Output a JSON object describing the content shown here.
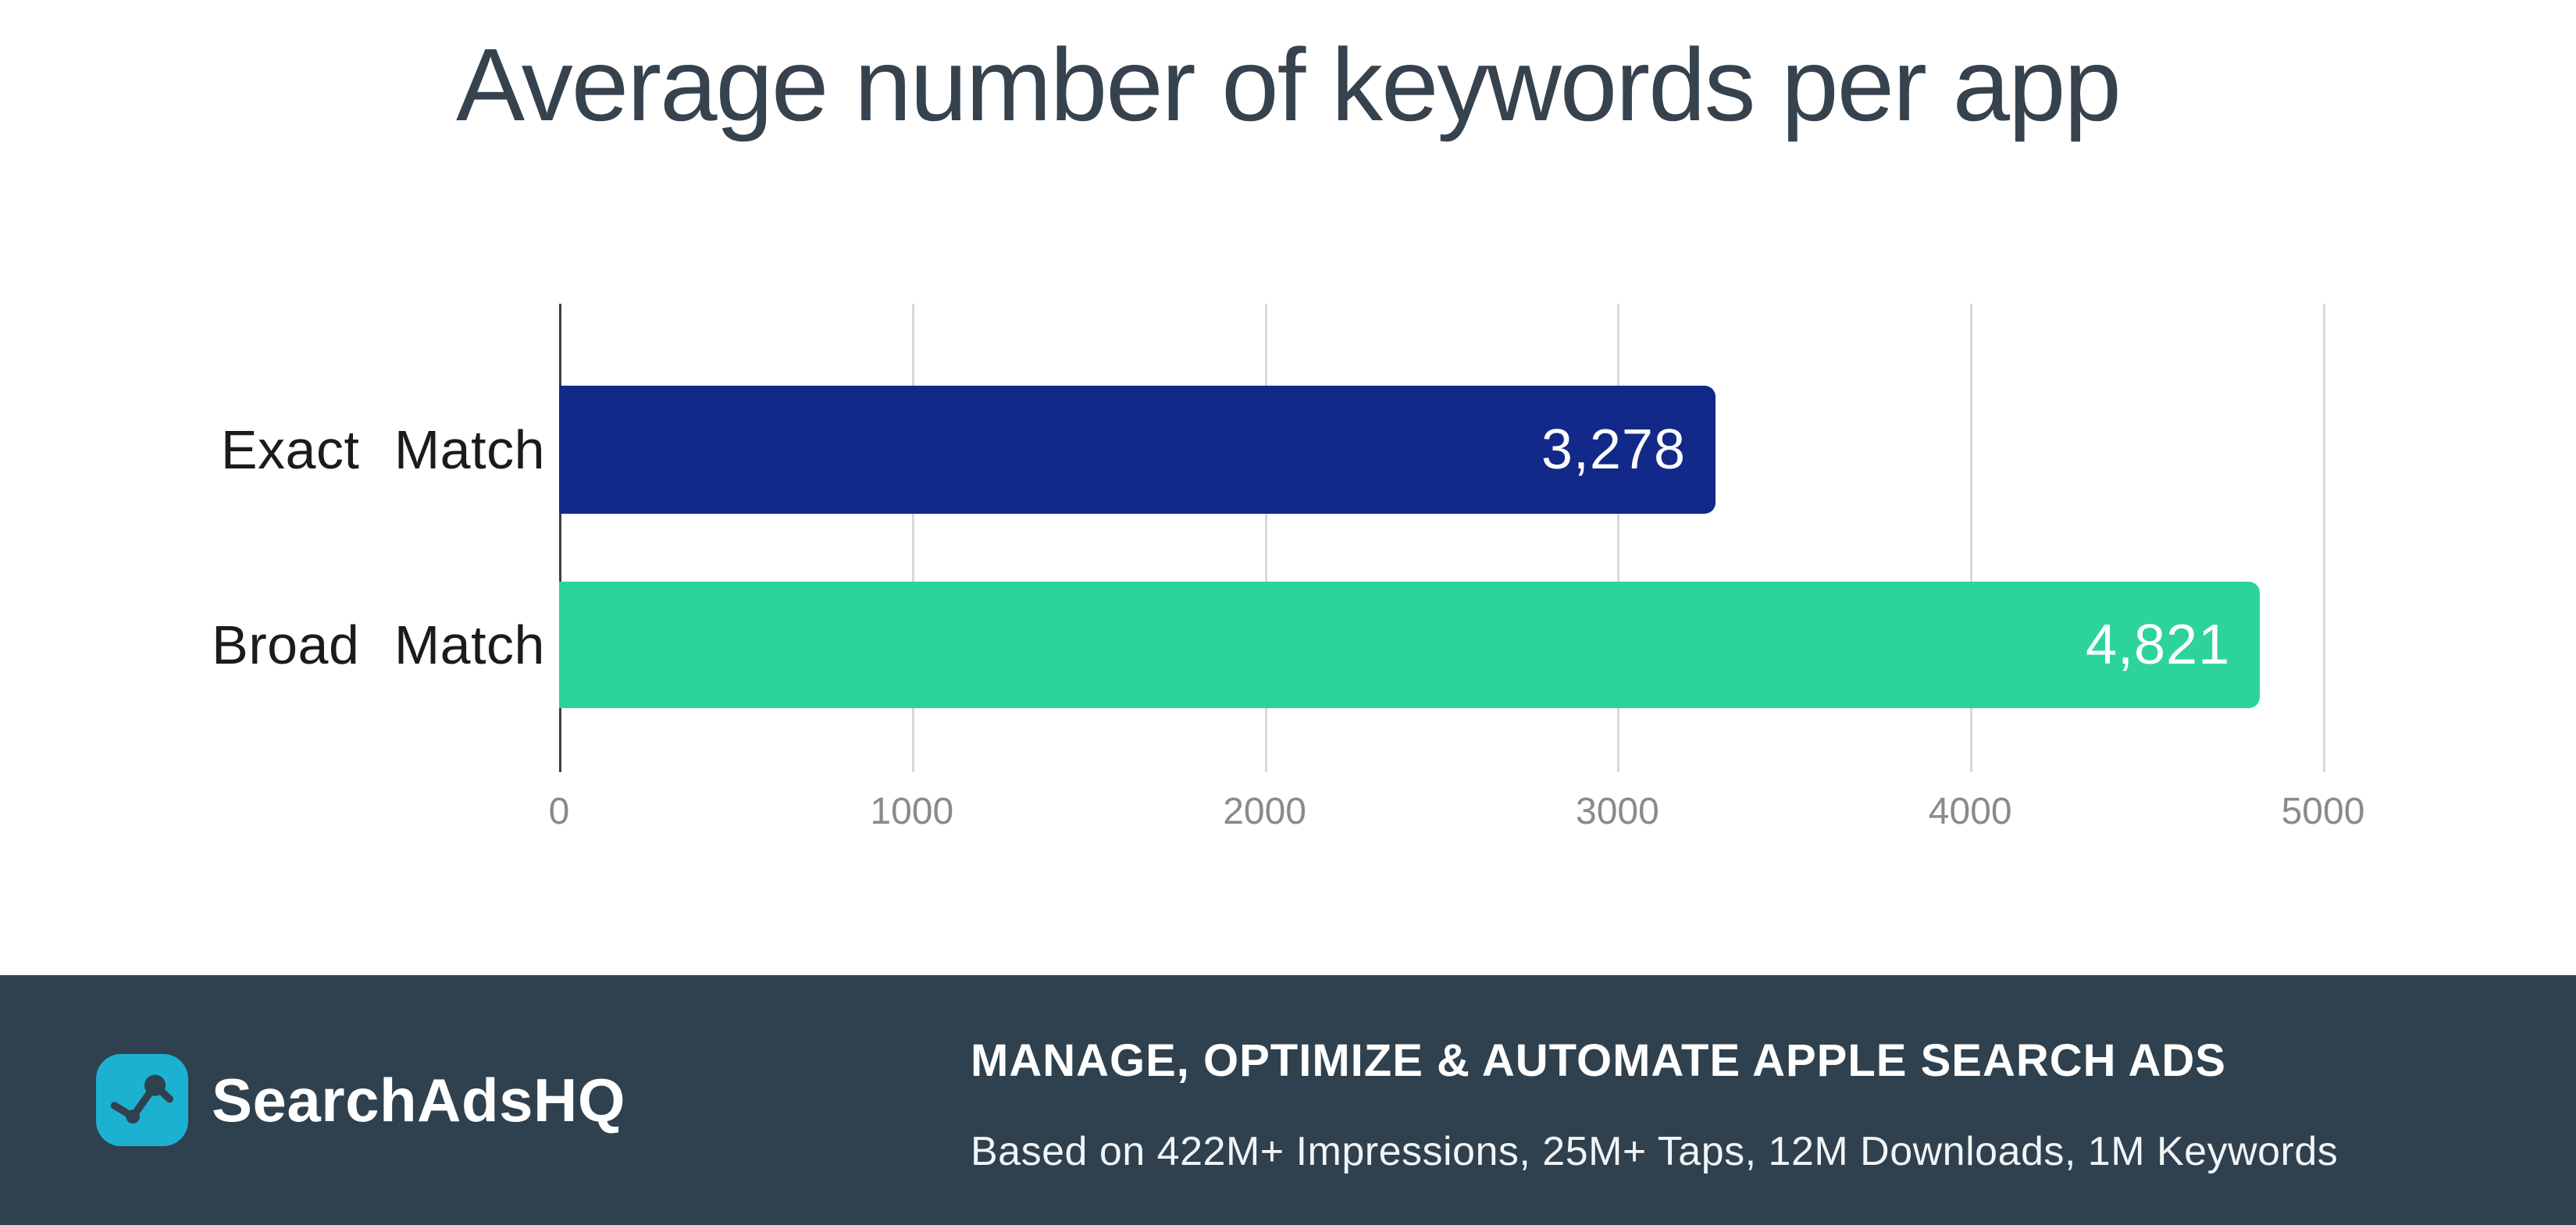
{
  "title": "Average number of keywords per app",
  "chart_data": {
    "type": "bar",
    "orientation": "horizontal",
    "title": "Average number of keywords per app",
    "categories": [
      "Exact Match",
      "Broad Match"
    ],
    "values": [
      3278,
      4821
    ],
    "value_labels": [
      "3,278",
      "4,821"
    ],
    "bar_colors": [
      "#12298a",
      "#2dd499"
    ],
    "xlabel": "",
    "ylabel": "",
    "xlim": [
      0,
      5000
    ],
    "x_ticks": [
      0,
      1000,
      2000,
      3000,
      4000,
      5000
    ],
    "x_tick_labels": [
      "0",
      "1000",
      "2000",
      "3000",
      "4000",
      "5000"
    ],
    "grid": true,
    "legend": false
  },
  "footer": {
    "headline": "MANAGE, OPTIMIZE & AUTOMATE APPLE SEARCH ADS",
    "subtext": "Based on 422M+ Impressions, 25M+ Taps, 12M Downloads, 1M Keywords",
    "bg_color": "#2f414e",
    "brand": {
      "name": "SearchAdsHQ",
      "logo_icon": "line-chart-icon",
      "logo_bg_color": "#1cb1d1",
      "logo_glyph_color": "#2f414e"
    }
  },
  "colors": {
    "background": "#ffffff",
    "title_text": "#36424d",
    "category_text": "#1b1b1b",
    "tick_text": "#8a8a8a",
    "gridline": "#d8d8d8",
    "axis_line": "#3f3f3f"
  }
}
